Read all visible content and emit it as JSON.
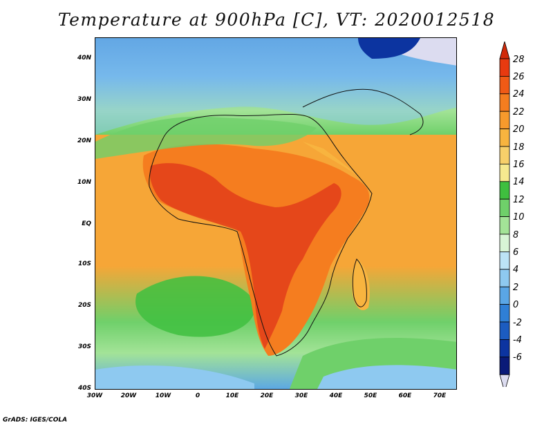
{
  "title": "Temperature at 900hPa [C], VT: 2020012518",
  "footer": "GrADS: IGES/COLA",
  "map": {
    "lat_labels": [
      "40N",
      "30N",
      "20N",
      "10N",
      "EQ",
      "10S",
      "20S",
      "30S",
      "40S"
    ],
    "lon_labels": [
      "30W",
      "20W",
      "10W",
      "0",
      "10E",
      "20E",
      "30E",
      "40E",
      "50E",
      "60E",
      "70E"
    ],
    "lat_range": [
      -40,
      45
    ],
    "lon_range": [
      -30,
      75
    ],
    "units": "C"
  },
  "colorbar": {
    "levels": [
      "28",
      "26",
      "24",
      "22",
      "20",
      "18",
      "16",
      "14",
      "12",
      "10",
      "8",
      "6",
      "4",
      "2",
      "0",
      "-2",
      "-4",
      "-6"
    ],
    "colors": [
      "#e83a10",
      "#f05a16",
      "#f57d1f",
      "#f79a2c",
      "#f8b43f",
      "#f7cf6a",
      "#f6e98f",
      "#3fbf3f",
      "#6fd06a",
      "#a3e397",
      "#d8f5d6",
      "#bce3f6",
      "#8ec9f0",
      "#5aa6e6",
      "#2f7fd6",
      "#1c5cc0",
      "#0c34a0",
      "#0a1a78"
    ],
    "top_color": "#d12a0a",
    "bottom_color": "#dcdcf0"
  },
  "colors": {
    "ocean_base": "#f6a637",
    "land_hot": "#e3411a",
    "green_belt": "#6fd06a",
    "cold_north": "#5aa6e6"
  }
}
